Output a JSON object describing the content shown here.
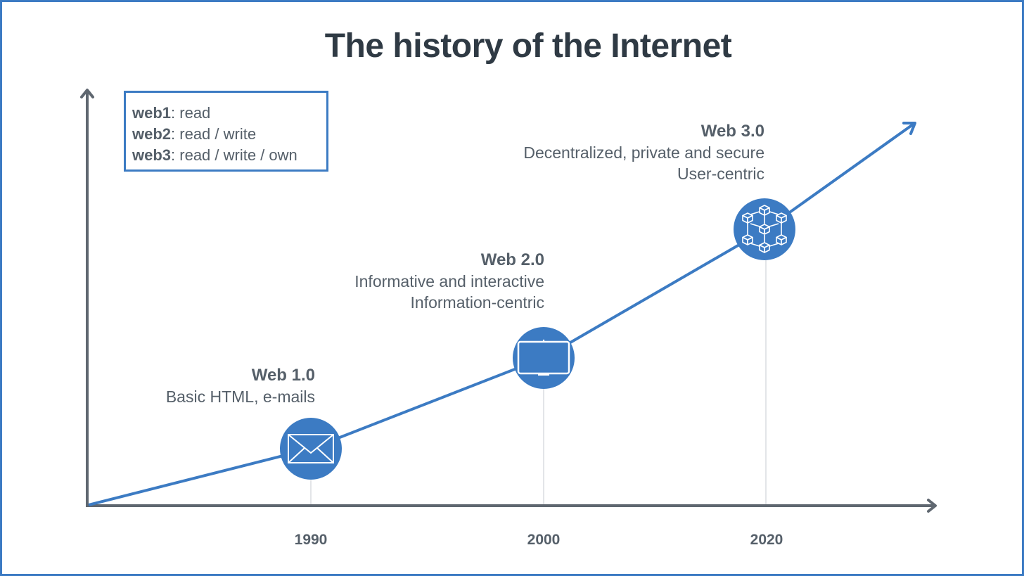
{
  "title": "The history of the Internet",
  "legend": [
    {
      "term": "web1",
      "desc": ": read"
    },
    {
      "term": "web2",
      "desc": ": read / write"
    },
    {
      "term": "web3",
      "desc": ": read / write / own"
    }
  ],
  "eras": [
    {
      "name": "Web 1.0",
      "lines": [
        "Basic HTML, e-mails"
      ],
      "year": "1990",
      "icon": "envelope-icon"
    },
    {
      "name": "Web 2.0",
      "lines": [
        "Informative and interactive",
        "Information-centric"
      ],
      "year": "2000",
      "icon": "monitor-icon"
    },
    {
      "name": "Web 3.0",
      "lines": [
        "Decentralized, private and secure",
        "User-centric"
      ],
      "year": "2020",
      "icon": "blockchain-icon"
    }
  ],
  "colors": {
    "accent": "#3c7bc3",
    "axis": "#5f6770",
    "text": "#555f69",
    "title": "#2f3a44"
  }
}
